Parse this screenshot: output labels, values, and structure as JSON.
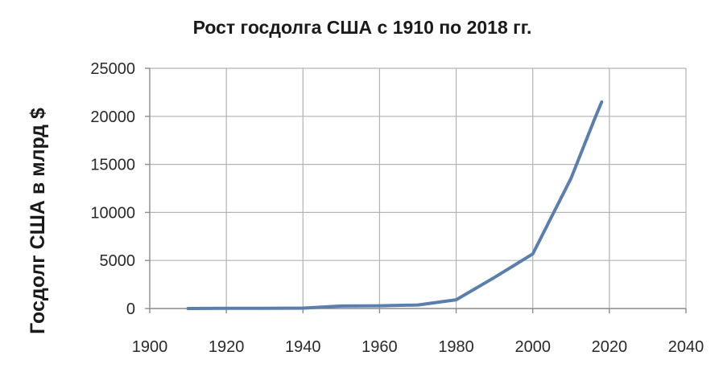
{
  "chart_data": {
    "type": "line",
    "title": "Рост госдолга США с 1910 по 2018 гг.",
    "xlabel": "",
    "ylabel": "Госдолг США в млрд $",
    "xlim": [
      1900,
      2040
    ],
    "ylim": [
      0,
      25000
    ],
    "x_ticks": [
      1900,
      1920,
      1940,
      1960,
      1980,
      2000,
      2020,
      2040
    ],
    "y_ticks": [
      0,
      5000,
      10000,
      15000,
      20000,
      25000
    ],
    "x_tick_labels": [
      "1900",
      "1920",
      "1940",
      "1960",
      "1980",
      "2000",
      "2020",
      "2040"
    ],
    "y_tick_labels": [
      "0",
      "5000",
      "10000",
      "15000",
      "20000",
      "25000"
    ],
    "grid": true,
    "legend": "none",
    "series": [
      {
        "color": "#5a7fae",
        "x": [
          1910,
          1920,
          1930,
          1940,
          1950,
          1960,
          1970,
          1980,
          1990,
          2000,
          2010,
          2016,
          2018
        ],
        "y": [
          3,
          26,
          16,
          43,
          257,
          286,
          371,
          908,
          3233,
          5674,
          13562,
          19573,
          21500
        ]
      }
    ]
  }
}
